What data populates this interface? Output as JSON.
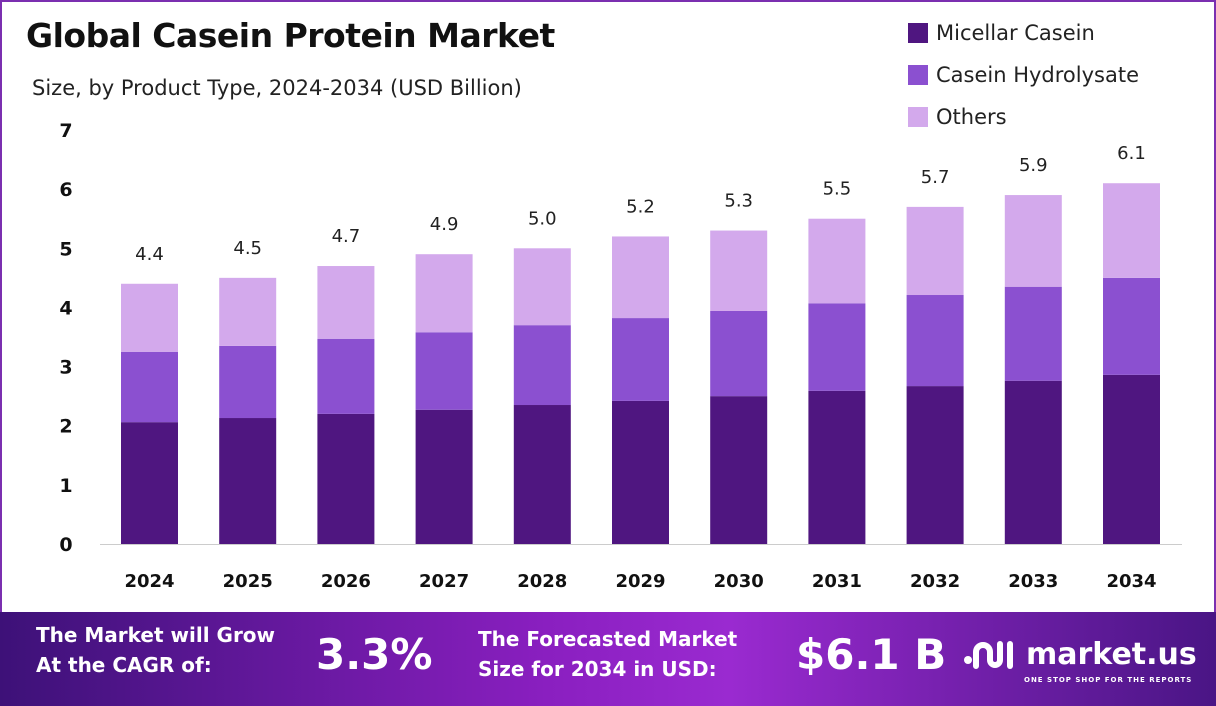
{
  "chart_data": {
    "type": "bar",
    "stacked": true,
    "title": "Global Casein Protein Market",
    "subtitle": "Size, by Product Type, 2024-2034 (USD Billion)",
    "categories": [
      "2024",
      "2025",
      "2026",
      "2027",
      "2028",
      "2029",
      "2030",
      "2031",
      "2032",
      "2033",
      "2034"
    ],
    "series": [
      {
        "name": "Micellar Casein",
        "color": "#4f1680",
        "values": [
          2.06,
          2.13,
          2.2,
          2.27,
          2.35,
          2.42,
          2.5,
          2.59,
          2.67,
          2.76,
          2.86
        ]
      },
      {
        "name": "Casein Hydrolysate",
        "color": "#8b50d0",
        "values": [
          1.19,
          1.22,
          1.27,
          1.31,
          1.35,
          1.4,
          1.44,
          1.48,
          1.54,
          1.59,
          1.64
        ]
      },
      {
        "name": "Others",
        "color": "#d3a9ec",
        "values": [
          1.15,
          1.15,
          1.23,
          1.32,
          1.3,
          1.38,
          1.36,
          1.43,
          1.49,
          1.55,
          1.6
        ]
      }
    ],
    "totals": [
      "4.4",
      "4.5",
      "4.7",
      "4.9",
      "5.0",
      "5.2",
      "5.3",
      "5.5",
      "5.7",
      "5.9",
      "6.1"
    ],
    "yticks": [
      "0",
      "1",
      "2",
      "3",
      "4",
      "5",
      "6",
      "7"
    ],
    "ylim": [
      0,
      7
    ],
    "legend": "top-right",
    "grid": false
  },
  "footer": {
    "cagr_label_1": "The Market will Grow",
    "cagr_label_2": "At the CAGR of:",
    "cagr_value": "3.3%",
    "forecast_label_1": "The Forecasted Market",
    "forecast_label_2": "Size for 2034 in USD:",
    "forecast_value": "$6.1 B",
    "brand": "market.us",
    "tagline": "ONE STOP SHOP FOR THE REPORTS"
  }
}
